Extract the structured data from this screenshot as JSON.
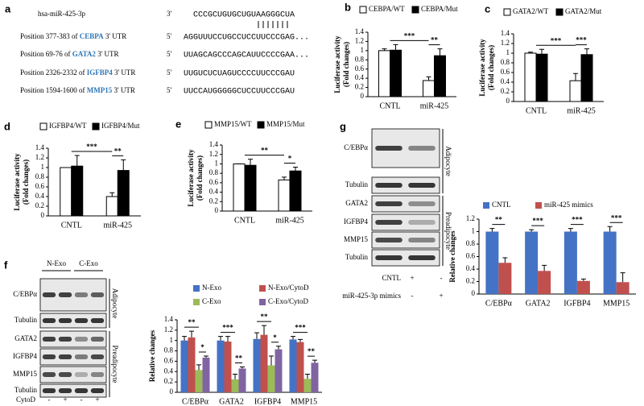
{
  "panel_labels": [
    "a",
    "b",
    "c",
    "d",
    "e",
    "f",
    "g"
  ],
  "alignment": {
    "mirna": {
      "name": "hsa-miR-425-3p",
      "end": "3'",
      "seq_pre": "CCCGCUGUGCUGU",
      "seq_match": "AAGGGCU",
      "seq_post": "A"
    },
    "targets": [
      {
        "label_pre": "Position 377-383 of ",
        "gene": "CEBPA",
        "label_post": " 3' UTR",
        "end": "5'",
        "seq_pre": "AGGUUUCCUGCCUCC",
        "seq_match": "UUCCCGA",
        "seq_post": "G..."
      },
      {
        "label_pre": "Position 69-76 of ",
        "gene": "GATA2",
        "label_post": " 3' UTR",
        "end": "5'",
        "seq_pre": "UUAGCAGCCCAGCAU",
        "seq_match": "UCCCCGA",
        "seq_post": "A..."
      },
      {
        "label_pre": "Position 2326-2332 of ",
        "gene": "IGFBP4",
        "label_post": " 3' UTR",
        "end": "5'",
        "seq_pre": "UUGUCUCUAGUCCCC",
        "seq_match": "UUCCCGA",
        "seq_post": "U"
      },
      {
        "label_pre": "Position 1594-1600 of ",
        "gene": "MMP15",
        "label_post": " 3' UTR",
        "end": "5'",
        "seq_pre": "UUCCAUGGGGGCUCC",
        "seq_match": "UUCCCGA",
        "seq_post": "U"
      }
    ]
  },
  "blots": [
    {
      "lanes": [
        "N-Exo",
        "C-Exo"
      ],
      "rows": [
        "C/EBPα",
        "Tubulin",
        "GATA2",
        "IGFBP4",
        "MMP15",
        "Tubulin"
      ],
      "groups": [
        "Adipocyte",
        "Preadipocyte"
      ],
      "conditions": [
        {
          "label": "CytoD",
          "signs": [
            "-",
            "+",
            "-",
            "+"
          ]
        }
      ]
    },
    {
      "rows": [
        "C/EBPα",
        "Tubulin",
        "GATA2",
        "IGFBP4",
        "MMP15",
        "Tubulin"
      ],
      "groups": [
        "Adipocyte",
        "Preadipocyte"
      ],
      "conditions": [
        {
          "label": "CNTL",
          "signs": [
            "+",
            "-"
          ]
        },
        {
          "label": "miR-425-3p mimics",
          "signs": [
            "-",
            "+"
          ]
        }
      ]
    }
  ],
  "chart_data": [
    {
      "type": "bar",
      "y_label": [
        "Luciferase activity",
        "(Fold changes)"
      ],
      "categories": [
        "CNTL",
        "miR-425"
      ],
      "series": [
        {
          "name": "CEBPA/WT",
          "color": "#ffffff",
          "values": [
            1.0,
            0.35
          ],
          "errors": [
            0.04,
            0.08
          ]
        },
        {
          "name": "CEBPA/Mut",
          "color": "#000000",
          "values": [
            1.01,
            0.89
          ],
          "errors": [
            0.12,
            0.15
          ]
        }
      ],
      "ylim": [
        0,
        1.4
      ],
      "yticks": [
        0,
        0.2,
        0.4,
        0.6,
        0.8,
        1,
        1.2,
        1.4
      ],
      "significance": [
        "***",
        "**"
      ]
    },
    {
      "type": "bar",
      "y_label": [
        "Luciferase activity",
        "(Fold changes)"
      ],
      "categories": [
        "CNTL",
        "miR-425"
      ],
      "series": [
        {
          "name": "GATA2/WT",
          "color": "#ffffff",
          "values": [
            1.0,
            0.43
          ],
          "errors": [
            0.02,
            0.15
          ]
        },
        {
          "name": "GATA2/Mut",
          "color": "#000000",
          "values": [
            0.98,
            0.97
          ],
          "errors": [
            0.1,
            0.12
          ]
        }
      ],
      "ylim": [
        0,
        1.4
      ],
      "yticks": [
        0,
        0.2,
        0.4,
        0.6,
        0.8,
        1,
        1.2,
        1.4
      ],
      "significance": [
        "***",
        "***"
      ]
    },
    {
      "type": "bar",
      "y_label": [
        "Luciferase activity",
        "(Fold changes)"
      ],
      "categories": [
        "CNTL",
        "miR-425"
      ],
      "series": [
        {
          "name": "IGFBP4/WT",
          "color": "#ffffff",
          "values": [
            1.0,
            0.4
          ],
          "errors": [
            0.0,
            0.08
          ]
        },
        {
          "name": "IGFBP4/Mut",
          "color": "#000000",
          "values": [
            1.03,
            0.94
          ],
          "errors": [
            0.22,
            0.22
          ]
        }
      ],
      "ylim": [
        0,
        1.4
      ],
      "yticks": [
        0,
        0.2,
        0.4,
        0.6,
        0.8,
        1,
        1.2,
        1.4
      ],
      "significance": [
        "***",
        "**"
      ]
    },
    {
      "type": "bar",
      "y_label": [
        "Luciferase activity",
        "(Fold changes)"
      ],
      "categories": [
        "CNTL",
        "miR-425"
      ],
      "series": [
        {
          "name": "MMP15/WT",
          "color": "#ffffff",
          "values": [
            1.0,
            0.66
          ],
          "errors": [
            0.0,
            0.06
          ]
        },
        {
          "name": "MMP15/Mut",
          "color": "#000000",
          "values": [
            0.97,
            0.85
          ],
          "errors": [
            0.13,
            0.08
          ]
        }
      ],
      "ylim": [
        0,
        1.4
      ],
      "yticks": [
        0,
        0.2,
        0.4,
        0.6,
        0.8,
        1,
        1.2,
        1.4
      ],
      "significance": [
        "**",
        "*"
      ]
    },
    {
      "type": "bar",
      "y_label": [
        "Relative changes"
      ],
      "categories": [
        "C/EBPα",
        "GATA2",
        "IGFBP4",
        "MMP15"
      ],
      "series": [
        {
          "name": "N-Exo",
          "color": "#4472c4",
          "values": [
            1.0,
            1.0,
            1.03,
            1.02
          ],
          "errors": [
            0.08,
            0.08,
            0.12,
            0.06
          ]
        },
        {
          "name": "N-Exo/CytoD",
          "color": "#c0504d",
          "values": [
            1.06,
            0.98,
            1.11,
            0.97
          ],
          "errors": [
            0.12,
            0.1,
            0.18,
            0.05
          ]
        },
        {
          "name": "C-Exo",
          "color": "#9bbb59",
          "values": [
            0.43,
            0.25,
            0.52,
            0.26
          ],
          "errors": [
            0.1,
            0.1,
            0.18,
            0.09
          ]
        },
        {
          "name": "C-Exo/CytoD",
          "color": "#8064a2",
          "values": [
            0.67,
            0.46,
            0.83,
            0.57
          ],
          "errors": [
            0.03,
            0.03,
            0.06,
            0.05
          ]
        }
      ],
      "ylim": [
        0,
        1.4
      ],
      "yticks": [
        0,
        0.2,
        0.4,
        0.6,
        0.8,
        1,
        1.2,
        1.4
      ],
      "significance": [
        [
          "**",
          "*"
        ],
        [
          "***",
          "**"
        ],
        [
          "**",
          "*"
        ],
        [
          "***",
          "**"
        ]
      ]
    },
    {
      "type": "bar",
      "y_label": [
        "Relative changes"
      ],
      "categories": [
        "C/EBPα",
        "GATA2",
        "IGFBP4",
        "MMP15"
      ],
      "series": [
        {
          "name": "CNTL",
          "color": "#4472c4",
          "values": [
            1.0,
            1.0,
            1.0,
            1.0
          ],
          "errors": [
            0.05,
            0.03,
            0.05,
            0.08
          ]
        },
        {
          "name": "miR-425 mimics",
          "color": "#c0504d",
          "values": [
            0.5,
            0.37,
            0.21,
            0.19
          ],
          "errors": [
            0.08,
            0.09,
            0.03,
            0.15
          ]
        }
      ],
      "ylim": [
        0,
        1.2
      ],
      "yticks": [
        0,
        0.2,
        0.4,
        0.6,
        0.8,
        1,
        1.2
      ],
      "significance": [
        "**",
        "***",
        "***",
        "***"
      ]
    }
  ]
}
